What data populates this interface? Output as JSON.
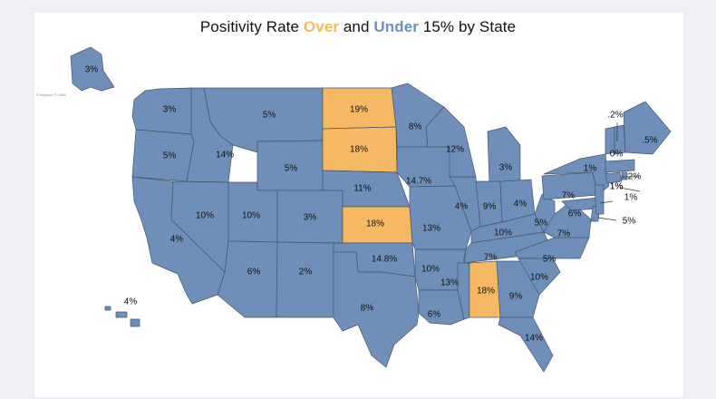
{
  "title": {
    "prefix": "Positivity Rate ",
    "over_word": "Over",
    "middle": " and ",
    "under_word": "Under",
    "suffix": " 15% by State"
  },
  "credit": "© Mapbox © OSM",
  "colors": {
    "over": "#f5b963",
    "under": "#6f8fba",
    "border": "#46556b",
    "background": "#ffffff"
  },
  "threshold_percent": 15,
  "states": [
    {
      "id": "WA",
      "rate": "3%",
      "over": false
    },
    {
      "id": "OR",
      "rate": "5%",
      "over": false
    },
    {
      "id": "CA",
      "rate": "4%",
      "over": false
    },
    {
      "id": "NV",
      "rate": "10%",
      "over": false
    },
    {
      "id": "ID",
      "rate": "14%",
      "over": false
    },
    {
      "id": "MT",
      "rate": "5%",
      "over": false
    },
    {
      "id": "WY",
      "rate": "5%",
      "over": false
    },
    {
      "id": "UT",
      "rate": "10%",
      "over": false
    },
    {
      "id": "CO",
      "rate": "3%",
      "over": false
    },
    {
      "id": "AZ",
      "rate": "6%",
      "over": false
    },
    {
      "id": "NM",
      "rate": "2%",
      "over": false
    },
    {
      "id": "ND",
      "rate": "19%",
      "over": true
    },
    {
      "id": "SD",
      "rate": "18%",
      "over": true
    },
    {
      "id": "NE",
      "rate": "11%",
      "over": false
    },
    {
      "id": "KS",
      "rate": "18%",
      "over": true
    },
    {
      "id": "OK",
      "rate": "14.8%",
      "over": false
    },
    {
      "id": "TX",
      "rate": "8%",
      "over": false
    },
    {
      "id": "MN",
      "rate": "8%",
      "over": false
    },
    {
      "id": "IA",
      "rate": "14.7%",
      "over": false
    },
    {
      "id": "MO",
      "rate": "13%",
      "over": false
    },
    {
      "id": "AR",
      "rate": "10%",
      "over": false
    },
    {
      "id": "LA",
      "rate": "6%",
      "over": false
    },
    {
      "id": "WI",
      "rate": "12%",
      "over": false
    },
    {
      "id": "IL",
      "rate": "4%",
      "over": false
    },
    {
      "id": "MI",
      "rate": "3%",
      "over": false
    },
    {
      "id": "IN",
      "rate": "9%",
      "over": false
    },
    {
      "id": "OH",
      "rate": "4%",
      "over": false
    },
    {
      "id": "KY",
      "rate": "10%",
      "over": false
    },
    {
      "id": "TN",
      "rate": "7%",
      "over": false
    },
    {
      "id": "MS",
      "rate": "13%",
      "over": false
    },
    {
      "id": "AL",
      "rate": "18%",
      "over": true
    },
    {
      "id": "GA",
      "rate": "9%",
      "over": false
    },
    {
      "id": "FL",
      "rate": "14%",
      "over": false
    },
    {
      "id": "SC",
      "rate": "10%",
      "over": false
    },
    {
      "id": "NC",
      "rate": "5%",
      "over": false
    },
    {
      "id": "VA",
      "rate": "7%",
      "over": false
    },
    {
      "id": "WV",
      "rate": "5%",
      "over": false
    },
    {
      "id": "PA",
      "rate": "7%",
      "over": false
    },
    {
      "id": "NY",
      "rate": "1%",
      "over": false
    },
    {
      "id": "MD",
      "rate": "6%",
      "over": false
    },
    {
      "id": "DE",
      "rate": "5%",
      "over": false
    },
    {
      "id": "NJ",
      "rate": "1%",
      "over": false
    },
    {
      "id": "CT",
      "rate": "1%",
      "over": false
    },
    {
      "id": "RI",
      "rate": "1%",
      "over": false
    },
    {
      "id": "MA",
      "rate": "2%",
      "over": false
    },
    {
      "id": "VT",
      "rate": ".2%",
      "over": false
    },
    {
      "id": "NH",
      "rate": "0%",
      "over": false
    },
    {
      "id": "ME",
      "rate": ".5%",
      "over": false
    },
    {
      "id": "AK",
      "rate": "3%",
      "over": false
    },
    {
      "id": "HI",
      "rate": "4%",
      "over": false
    }
  ]
}
